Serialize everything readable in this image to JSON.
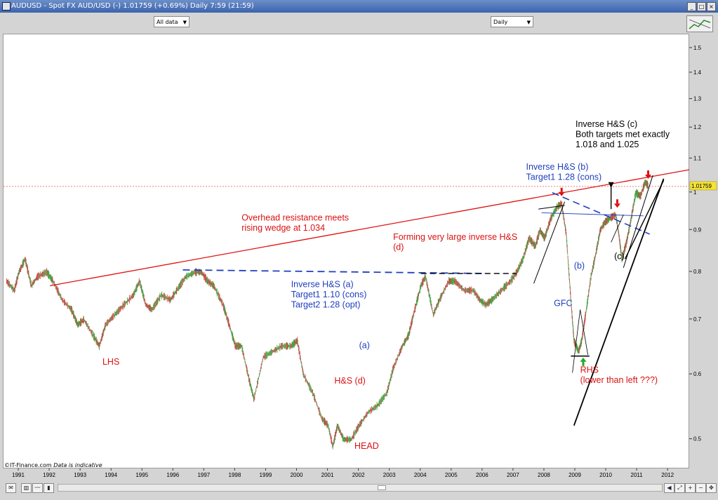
{
  "window": {
    "title": "AUDUSD - Spot FX AUD/USD (-)   1.01759 (+0.69%)   Daily  7:59 (21:59)"
  },
  "toolbar": {
    "range_select": "All data",
    "interval_select": "Daily"
  },
  "footer": {
    "credit": "©IT-Finance.com",
    "disclaimer": "Data is indicative"
  },
  "icons": [
    "window-menu-icon",
    "minimize-icon",
    "maximize-icon",
    "close-icon",
    "chart-settings-icon",
    "mail-icon",
    "bar-chart-icon",
    "line-chart-icon",
    "candle-chart-icon",
    "scroll-left-icon",
    "scroll-right-icon",
    "fit-icon",
    "zoom-in-icon",
    "zoom-out-icon",
    "pan-icon"
  ],
  "chart_data": {
    "type": "line",
    "scale": "log",
    "ylim": [
      0.46,
      1.56
    ],
    "xlim": [
      1990.5,
      2012.7
    ],
    "yticks": [
      {
        "v": 0.5,
        "label": "0.5"
      },
      {
        "v": 0.6,
        "label": "0.6"
      },
      {
        "v": 0.7,
        "label": "0.7"
      },
      {
        "v": 0.8,
        "label": "0.8"
      },
      {
        "v": 0.9,
        "label": "0.9"
      },
      {
        "v": 1.0,
        "label": "1"
      },
      {
        "v": 1.1,
        "label": "1.1"
      },
      {
        "v": 1.2,
        "label": "1.2"
      },
      {
        "v": 1.3,
        "label": "1.3"
      },
      {
        "v": 1.4,
        "label": "1.4"
      },
      {
        "v": 1.5,
        "label": "1.5"
      }
    ],
    "xticks": [
      {
        "v": 1991,
        "label": "1991"
      },
      {
        "v": 1992,
        "label": "1992"
      },
      {
        "v": 1993,
        "label": "1993"
      },
      {
        "v": 1994,
        "label": "1994"
      },
      {
        "v": 1995,
        "label": "1995"
      },
      {
        "v": 1996,
        "label": "1996"
      },
      {
        "v": 1997,
        "label": "1997"
      },
      {
        "v": 1998,
        "label": "1998"
      },
      {
        "v": 1999,
        "label": "1999"
      },
      {
        "v": 2000,
        "label": "2000"
      },
      {
        "v": 2001,
        "label": "2001"
      },
      {
        "v": 2002,
        "label": "2002"
      },
      {
        "v": 2003,
        "label": "2003"
      },
      {
        "v": 2004,
        "label": "2004"
      },
      {
        "v": 2005,
        "label": "2005"
      },
      {
        "v": 2006,
        "label": "2006"
      },
      {
        "v": 2007,
        "label": "2007"
      },
      {
        "v": 2008,
        "label": "2008"
      },
      {
        "v": 2009,
        "label": "2009"
      },
      {
        "v": 2010,
        "label": "2010"
      },
      {
        "v": 2011,
        "label": "2011"
      },
      {
        "v": 2012,
        "label": "2012"
      }
    ],
    "series": [
      {
        "points": [
          [
            1990.6,
            0.78
          ],
          [
            1990.85,
            0.76
          ],
          [
            1991.0,
            0.8
          ],
          [
            1991.2,
            0.83
          ],
          [
            1991.4,
            0.77
          ],
          [
            1991.6,
            0.79
          ],
          [
            1991.9,
            0.8
          ],
          [
            1992.1,
            0.78
          ],
          [
            1992.4,
            0.74
          ],
          [
            1992.7,
            0.72
          ],
          [
            1992.9,
            0.69
          ],
          [
            1993.1,
            0.7
          ],
          [
            1993.4,
            0.67
          ],
          [
            1993.6,
            0.65
          ],
          [
            1993.8,
            0.69
          ],
          [
            1994.1,
            0.71
          ],
          [
            1994.4,
            0.73
          ],
          [
            1994.7,
            0.75
          ],
          [
            1994.9,
            0.78
          ],
          [
            1995.1,
            0.73
          ],
          [
            1995.3,
            0.72
          ],
          [
            1995.6,
            0.75
          ],
          [
            1995.9,
            0.74
          ],
          [
            1996.1,
            0.76
          ],
          [
            1996.4,
            0.79
          ],
          [
            1996.7,
            0.8
          ],
          [
            1996.9,
            0.8
          ],
          [
            1997.1,
            0.78
          ],
          [
            1997.3,
            0.77
          ],
          [
            1997.6,
            0.73
          ],
          [
            1997.8,
            0.69
          ],
          [
            1998.0,
            0.65
          ],
          [
            1998.2,
            0.65
          ],
          [
            1998.45,
            0.59
          ],
          [
            1998.6,
            0.56
          ],
          [
            1998.9,
            0.63
          ],
          [
            1999.2,
            0.64
          ],
          [
            1999.5,
            0.65
          ],
          [
            1999.8,
            0.65
          ],
          [
            2000.0,
            0.66
          ],
          [
            2000.2,
            0.6
          ],
          [
            2000.5,
            0.57
          ],
          [
            2000.8,
            0.53
          ],
          [
            2001.0,
            0.52
          ],
          [
            2001.15,
            0.49
          ],
          [
            2001.3,
            0.52
          ],
          [
            2001.5,
            0.5
          ],
          [
            2001.75,
            0.5
          ],
          [
            2002.0,
            0.52
          ],
          [
            2002.3,
            0.54
          ],
          [
            2002.6,
            0.55
          ],
          [
            2002.9,
            0.57
          ],
          [
            2003.1,
            0.61
          ],
          [
            2003.4,
            0.65
          ],
          [
            2003.6,
            0.67
          ],
          [
            2003.8,
            0.72
          ],
          [
            2004.0,
            0.77
          ],
          [
            2004.15,
            0.79
          ],
          [
            2004.4,
            0.71
          ],
          [
            2004.6,
            0.74
          ],
          [
            2004.9,
            0.78
          ],
          [
            2005.1,
            0.78
          ],
          [
            2005.4,
            0.76
          ],
          [
            2005.7,
            0.76
          ],
          [
            2005.9,
            0.74
          ],
          [
            2006.1,
            0.73
          ],
          [
            2006.3,
            0.74
          ],
          [
            2006.6,
            0.76
          ],
          [
            2006.9,
            0.78
          ],
          [
            2007.1,
            0.8
          ],
          [
            2007.3,
            0.83
          ],
          [
            2007.5,
            0.88
          ],
          [
            2007.7,
            0.86
          ],
          [
            2007.85,
            0.9
          ],
          [
            2008.0,
            0.88
          ],
          [
            2008.2,
            0.93
          ],
          [
            2008.4,
            0.96
          ],
          [
            2008.55,
            0.97
          ],
          [
            2008.7,
            0.89
          ],
          [
            2008.85,
            0.74
          ],
          [
            2008.95,
            0.66
          ],
          [
            2009.1,
            0.64
          ],
          [
            2009.2,
            0.66
          ],
          [
            2009.35,
            0.72
          ],
          [
            2009.5,
            0.79
          ],
          [
            2009.65,
            0.84
          ],
          [
            2009.8,
            0.9
          ],
          [
            2009.95,
            0.92
          ],
          [
            2010.1,
            0.93
          ],
          [
            2010.3,
            0.94
          ],
          [
            2010.4,
            0.89
          ],
          [
            2010.5,
            0.83
          ],
          [
            2010.65,
            0.87
          ],
          [
            2010.8,
            0.93
          ],
          [
            2010.95,
            1.0
          ],
          [
            2011.1,
            0.99
          ],
          [
            2011.25,
            1.03
          ],
          [
            2011.35,
            1.02
          ]
        ]
      }
    ],
    "last_value_label": "1.01759",
    "lines": [
      {
        "name": "overhead-resistance-line",
        "color": "#e01010",
        "width": 1.3,
        "dash": "",
        "x1": 1992.0,
        "y1": 0.77,
        "x2": 2012.7,
        "y2": 1.067
      },
      {
        "name": "neckline-a",
        "color": "#1f3fbf",
        "width": 1.8,
        "dash": "10,6",
        "x1": 1996.3,
        "y1": 0.805,
        "x2": 2006.0,
        "y2": 0.797
      },
      {
        "name": "neckline-d",
        "color": "#111111",
        "width": 1.5,
        "dash": "8,5",
        "x1": 2004.0,
        "y1": 0.797,
        "x2": 2007.1,
        "y2": 0.797
      },
      {
        "name": "neckline-b",
        "color": "#1f3fbf",
        "width": 1.6,
        "dash": "10,6",
        "x1": 2008.25,
        "y1": 1.0,
        "x2": 2011.4,
        "y2": 0.89
      },
      {
        "name": "neckline-c",
        "color": "#1f3fbf",
        "width": 0.9,
        "dash": "",
        "x1": 2007.9,
        "y1": 0.945,
        "x2": 2011.2,
        "y2": 0.937
      },
      {
        "name": "wedge-lower-line",
        "color": "#000000",
        "width": 1.8,
        "dash": "",
        "x1": 2008.95,
        "y1": 0.52,
        "x2": 2011.85,
        "y2": 1.04
      },
      {
        "name": "wedge-upper-line",
        "color": "#000000",
        "width": 1.4,
        "dash": "",
        "x1": 2010.6,
        "y1": 0.83,
        "x2": 2011.85,
        "y2": 1.035
      },
      {
        "name": "wedge-line-2011",
        "color": "#000000",
        "width": 1.0,
        "dash": "",
        "x1": 2010.55,
        "y1": 0.81,
        "x2": 2011.5,
        "y2": 1.05
      },
      {
        "name": "support-line-2008",
        "color": "#000000",
        "width": 1.0,
        "dash": "",
        "x1": 2007.65,
        "y1": 0.775,
        "x2": 2008.65,
        "y2": 0.975
      },
      {
        "name": "top-line-2008",
        "color": "#000000",
        "width": 1.0,
        "dash": "",
        "x1": 2007.8,
        "y1": 0.955,
        "x2": 2008.65,
        "y2": 0.965
      },
      {
        "name": "low-line-2009",
        "color": "#000000",
        "width": 1.5,
        "dash": "",
        "x1": 2008.85,
        "y1": 0.632,
        "x2": 2009.45,
        "y2": 0.632
      },
      {
        "name": "gfc-line-a",
        "color": "#000000",
        "width": 0.8,
        "dash": "",
        "x1": 2008.9,
        "y1": 0.603,
        "x2": 2009.15,
        "y2": 0.72
      },
      {
        "name": "gfc-line-b",
        "color": "#000000",
        "width": 0.8,
        "dash": "",
        "x1": 2009.15,
        "y1": 0.72,
        "x2": 2009.4,
        "y2": 0.634
      },
      {
        "name": "mid-line-2010",
        "color": "#000000",
        "width": 0.8,
        "dash": "",
        "x1": 2010.15,
        "y1": 0.87,
        "x2": 2010.55,
        "y2": 0.94
      },
      {
        "name": "pointer-c-line",
        "color": "#000000",
        "width": 1.4,
        "dash": "",
        "x1": 2010.15,
        "y1": 0.955,
        "x2": 2010.15,
        "y2": 1.02
      }
    ],
    "reference_hline": {
      "y": 1.01759,
      "color": "#e05555"
    },
    "arrows": [
      {
        "name": "red-arrow-2008",
        "x": 2008.55,
        "y": 1.002,
        "color": "#dd1111",
        "dir": "down"
      },
      {
        "name": "red-arrow-2010",
        "x": 2010.35,
        "y": 0.97,
        "color": "#dd1111",
        "dir": "down"
      },
      {
        "name": "red-arrow-2011",
        "x": 2011.35,
        "y": 1.052,
        "color": "#dd1111",
        "dir": "down"
      },
      {
        "name": "green-arrow-2009",
        "x": 2009.25,
        "y": 0.622,
        "color": "#22aa22",
        "dir": "up"
      },
      {
        "name": "black-arrow-c",
        "x": 2010.15,
        "y": 1.03,
        "color": "#000000",
        "dir": "down"
      }
    ],
    "annotations": [
      {
        "name": "annotation-lhs",
        "x": 1993.7,
        "y": 0.617,
        "color": "#dd1111",
        "lines": [
          "LHS"
        ]
      },
      {
        "name": "annotation-head",
        "x": 2001.85,
        "y": 0.487,
        "color": "#dd1111",
        "lines": [
          "HEAD"
        ]
      },
      {
        "name": "annotation-hs-d",
        "x": 2001.2,
        "y": 0.585,
        "color": "#dd1111",
        "lines": [
          "H&S (d)"
        ]
      },
      {
        "name": "annotation-a",
        "x": 2002.0,
        "y": 0.646,
        "color": "#1f3fbf",
        "lines": [
          "(a)"
        ]
      },
      {
        "name": "annotation-overhead",
        "x": 1998.2,
        "y": 0.925,
        "color": "#dd1111",
        "lines": [
          "Overhead resistance meets",
          "rising wedge at 1.034"
        ]
      },
      {
        "name": "annotation-forming",
        "x": 2003.1,
        "y": 0.876,
        "color": "#dd1111",
        "lines": [
          "Forming very large inverse H&S",
          "(d)"
        ]
      },
      {
        "name": "annotation-inverse-a",
        "x": 1999.8,
        "y": 0.767,
        "color": "#1f3fbf",
        "lines": [
          "Inverse H&S (a)",
          "Target1  1.10 (cons)",
          "Target2  1.28 (opt)"
        ]
      },
      {
        "name": "annotation-inverse-b",
        "x": 2007.4,
        "y": 1.067,
        "color": "#1f3fbf",
        "lines": [
          "Inverse H&S (b)",
          "Target1  1.28 (cons)"
        ]
      },
      {
        "name": "annotation-inverse-c",
        "x": 2009.0,
        "y": 1.203,
        "color": "#000000",
        "lines": [
          "Inverse H&S (c)",
          "Both targets met exactly",
          "1.018 and 1.025"
        ]
      },
      {
        "name": "annotation-gfc",
        "x": 2008.3,
        "y": 0.727,
        "color": "#1f3fbf",
        "lines": [
          "GFC"
        ]
      },
      {
        "name": "annotation-b",
        "x": 2008.95,
        "y": 0.808,
        "color": "#1f3fbf",
        "lines": [
          "(b)"
        ]
      },
      {
        "name": "annotation-c",
        "x": 2010.25,
        "y": 0.83,
        "color": "#000000",
        "lines": [
          "(c)"
        ]
      },
      {
        "name": "annotation-rhs",
        "x": 2009.15,
        "y": 0.603,
        "color": "#dd1111",
        "lines": [
          "RHS",
          "(lower than left ???)"
        ]
      }
    ]
  }
}
